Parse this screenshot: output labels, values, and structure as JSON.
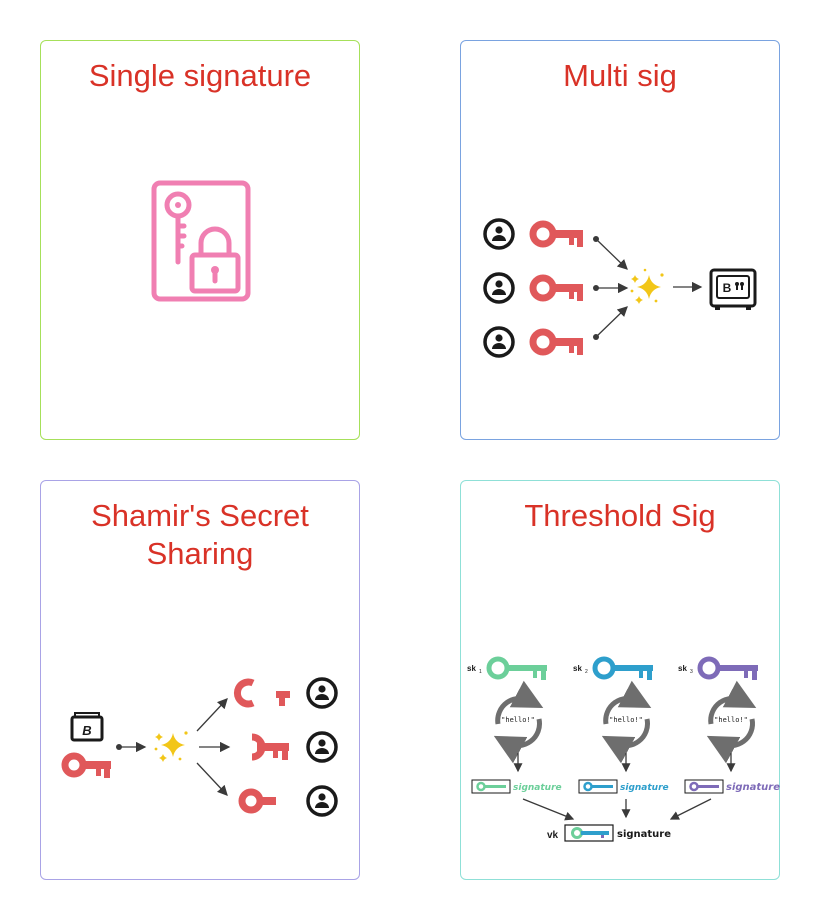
{
  "colors": {
    "title_red": "#d93227",
    "border_single": "#a6e05a",
    "border_multi": "#7aa3e0",
    "border_shamir": "#a9a3e6",
    "border_threshold": "#8fe0d7",
    "pink_icon": "#f07fb2",
    "coral_key": "#e0585a",
    "sparkle": "#f2c618",
    "key_green": "#6ccf9a",
    "key_blue": "#2e9fcc",
    "key_purple": "#7e6bb8",
    "arrow": "#3a3a3a",
    "cycle_grey": "#6e6e6e"
  },
  "panels": {
    "single": {
      "title": "Single signature",
      "icon": "key-document-lock-icon"
    },
    "multi": {
      "title": "Multi sig",
      "icons": [
        "user-icon",
        "key-icon",
        "sparkle-icon",
        "bitcoin-safe-icon"
      ]
    },
    "shamir": {
      "title_line1": "Shamir's Secret",
      "title_line2": "Sharing",
      "icons": [
        "bitcoin-wallet-icon",
        "key-icon",
        "sparkle-icon",
        "key-fragment-icon",
        "user-icon"
      ]
    },
    "threshold": {
      "title": "Threshold Sig",
      "sk1": "sk",
      "sk2": "sk",
      "sk3": "sk",
      "sub1": "1",
      "sub2": "2",
      "sub3": "3",
      "message": "\"hello!\"",
      "sig1": "signature",
      "sig2": "signature",
      "sig3": "signature",
      "vk": "vk",
      "vk_sig": "signature"
    }
  }
}
